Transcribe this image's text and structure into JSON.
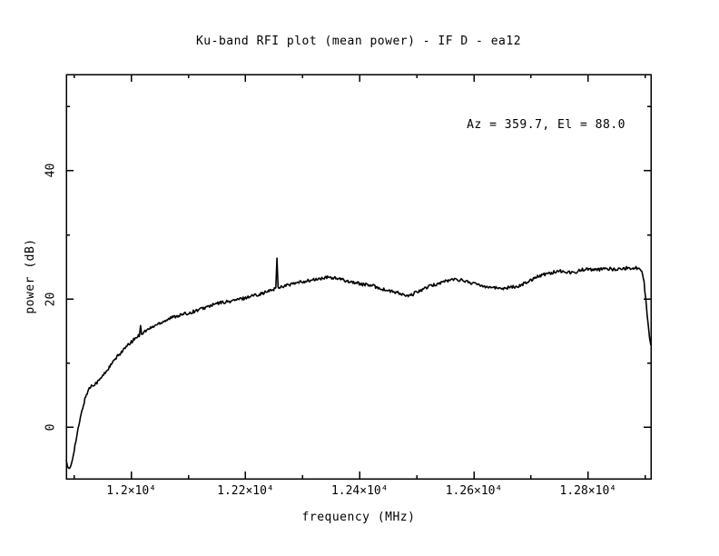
{
  "page": {
    "background_color": "#ffffff",
    "foreground_color": "#000000"
  },
  "chart_data": {
    "type": "line",
    "title": "Ku-band RFI plot (mean power) - IF D - ea12",
    "annotation": "Az = 359.7, El = 88.0",
    "xlabel": "frequency (MHz)",
    "ylabel": "power (dB)",
    "xlim": [
      11886,
      12910
    ],
    "ylim": [
      -8,
      55
    ],
    "x_major_ticks": [
      12000,
      12200,
      12400,
      12600,
      12800
    ],
    "x_tick_labels": [
      "1.2×10⁴",
      "1.22×10⁴",
      "1.24×10⁴",
      "1.26×10⁴",
      "1.28×10⁴"
    ],
    "x_minor_ticks": [
      11900,
      12100,
      12300,
      12500,
      12700,
      12900
    ],
    "y_major_ticks": [
      0,
      20,
      40
    ],
    "y_tick_labels": [
      "0",
      "20",
      "40"
    ],
    "y_minor_ticks": [
      10,
      30,
      50
    ],
    "grid": false,
    "legend": "none",
    "tick_style": "inward-mirrored",
    "line_color": "#000000",
    "noise_amplitude_db": 0.25,
    "series": [
      {
        "name": "mean power",
        "points": [
          [
            11886,
            -5.0
          ],
          [
            11888,
            -6.2
          ],
          [
            11891,
            -6.6
          ],
          [
            11894,
            -6.0
          ],
          [
            11897,
            -4.8
          ],
          [
            11900,
            -3.4
          ],
          [
            11904,
            -1.6
          ],
          [
            11908,
            0.3
          ],
          [
            11912,
            2.0
          ],
          [
            11916,
            3.5
          ],
          [
            11920,
            4.8
          ],
          [
            11925,
            5.9
          ],
          [
            11930,
            6.5
          ],
          [
            11936,
            6.8
          ],
          [
            11941,
            7.1
          ],
          [
            11947,
            7.7
          ],
          [
            11953,
            8.4
          ],
          [
            11960,
            9.2
          ],
          [
            11968,
            10.2
          ],
          [
            11976,
            11.1
          ],
          [
            11984,
            11.9
          ],
          [
            11992,
            12.6
          ],
          [
            12000,
            13.3
          ],
          [
            12008,
            14.0
          ],
          [
            12014,
            14.4
          ],
          [
            12016,
            16.0
          ],
          [
            12018,
            14.6
          ],
          [
            12024,
            15.0
          ],
          [
            12032,
            15.4
          ],
          [
            12040,
            15.8
          ],
          [
            12050,
            16.3
          ],
          [
            12060,
            16.7
          ],
          [
            12070,
            17.1
          ],
          [
            12080,
            17.4
          ],
          [
            12090,
            17.6
          ],
          [
            12100,
            17.8
          ],
          [
            12110,
            18.1
          ],
          [
            12120,
            18.4
          ],
          [
            12130,
            18.7
          ],
          [
            12140,
            19.0
          ],
          [
            12150,
            19.3
          ],
          [
            12160,
            19.5
          ],
          [
            12170,
            19.6
          ],
          [
            12180,
            19.8
          ],
          [
            12190,
            20.0
          ],
          [
            12200,
            20.2
          ],
          [
            12210,
            20.5
          ],
          [
            12220,
            20.7
          ],
          [
            12230,
            20.9
          ],
          [
            12240,
            21.2
          ],
          [
            12248,
            21.5
          ],
          [
            12253,
            21.7
          ],
          [
            12255,
            26.3
          ],
          [
            12257,
            21.8
          ],
          [
            12265,
            22.0
          ],
          [
            12275,
            22.2
          ],
          [
            12285,
            22.4
          ],
          [
            12295,
            22.6
          ],
          [
            12305,
            22.8
          ],
          [
            12315,
            22.9
          ],
          [
            12325,
            23.1
          ],
          [
            12335,
            23.2
          ],
          [
            12345,
            23.4
          ],
          [
            12355,
            23.3
          ],
          [
            12365,
            23.1
          ],
          [
            12375,
            22.9
          ],
          [
            12385,
            22.7
          ],
          [
            12395,
            22.5
          ],
          [
            12405,
            22.3
          ],
          [
            12415,
            22.2
          ],
          [
            12425,
            22.0
          ],
          [
            12435,
            21.7
          ],
          [
            12445,
            21.4
          ],
          [
            12455,
            21.2
          ],
          [
            12465,
            21.0
          ],
          [
            12475,
            20.7
          ],
          [
            12485,
            20.4
          ],
          [
            12492,
            20.7
          ],
          [
            12500,
            21.1
          ],
          [
            12510,
            21.5
          ],
          [
            12520,
            21.9
          ],
          [
            12530,
            22.2
          ],
          [
            12540,
            22.5
          ],
          [
            12550,
            22.8
          ],
          [
            12560,
            23.0
          ],
          [
            12570,
            23.1
          ],
          [
            12580,
            22.9
          ],
          [
            12590,
            22.7
          ],
          [
            12600,
            22.4
          ],
          [
            12610,
            22.2
          ],
          [
            12620,
            22.0
          ],
          [
            12630,
            21.9
          ],
          [
            12640,
            21.7
          ],
          [
            12650,
            21.7
          ],
          [
            12660,
            21.8
          ],
          [
            12670,
            21.9
          ],
          [
            12680,
            22.1
          ],
          [
            12690,
            22.5
          ],
          [
            12700,
            23.0
          ],
          [
            12710,
            23.5
          ],
          [
            12720,
            23.8
          ],
          [
            12730,
            24.0
          ],
          [
            12740,
            24.2
          ],
          [
            12750,
            24.4
          ],
          [
            12760,
            24.3
          ],
          [
            12770,
            24.1
          ],
          [
            12780,
            24.3
          ],
          [
            12790,
            24.6
          ],
          [
            12800,
            24.7
          ],
          [
            12810,
            24.5
          ],
          [
            12820,
            24.6
          ],
          [
            12830,
            24.8
          ],
          [
            12840,
            24.7
          ],
          [
            12850,
            24.6
          ],
          [
            12860,
            24.7
          ],
          [
            12870,
            24.9
          ],
          [
            12880,
            24.8
          ],
          [
            12888,
            24.9
          ],
          [
            12894,
            24.6
          ],
          [
            12898,
            22.5
          ],
          [
            12902,
            19.0
          ],
          [
            12906,
            15.2
          ],
          [
            12909,
            13.2
          ],
          [
            12910,
            12.8
          ]
        ]
      }
    ]
  }
}
